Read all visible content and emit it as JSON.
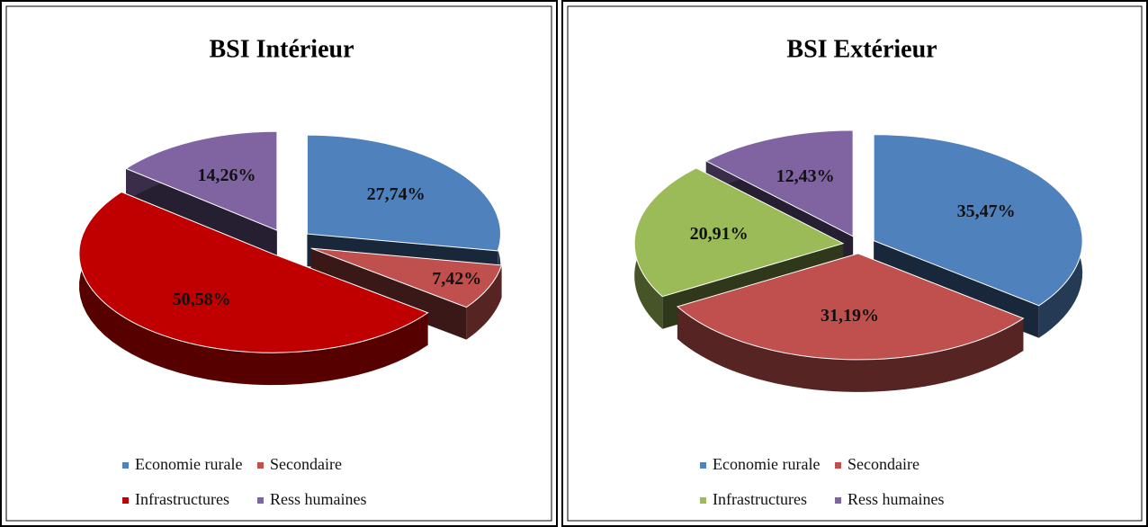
{
  "chart_data": [
    {
      "type": "pie",
      "title": "BSI Intérieur",
      "categories": [
        "Economie rurale",
        "Secondaire",
        "Infrastructures",
        "Ress humaines"
      ],
      "values": [
        27.74,
        7.42,
        50.58,
        14.26
      ],
      "value_labels": [
        "27,74%",
        "7,42%",
        "50,58%",
        "14,26%"
      ],
      "colors": [
        "#4f81bd",
        "#c0504d",
        "#c00000",
        "#8064a2"
      ]
    },
    {
      "type": "pie",
      "title": "BSI Extérieur",
      "categories": [
        "Economie rurale",
        "Secondaire",
        "Infrastructures",
        "Ress humaines"
      ],
      "values": [
        35.47,
        31.19,
        20.91,
        12.43
      ],
      "value_labels": [
        "35,47%",
        "31,19%",
        "20,91%",
        "12,43%"
      ],
      "colors": [
        "#4f81bd",
        "#c0504d",
        "#9bbb59",
        "#8064a2"
      ]
    }
  ]
}
